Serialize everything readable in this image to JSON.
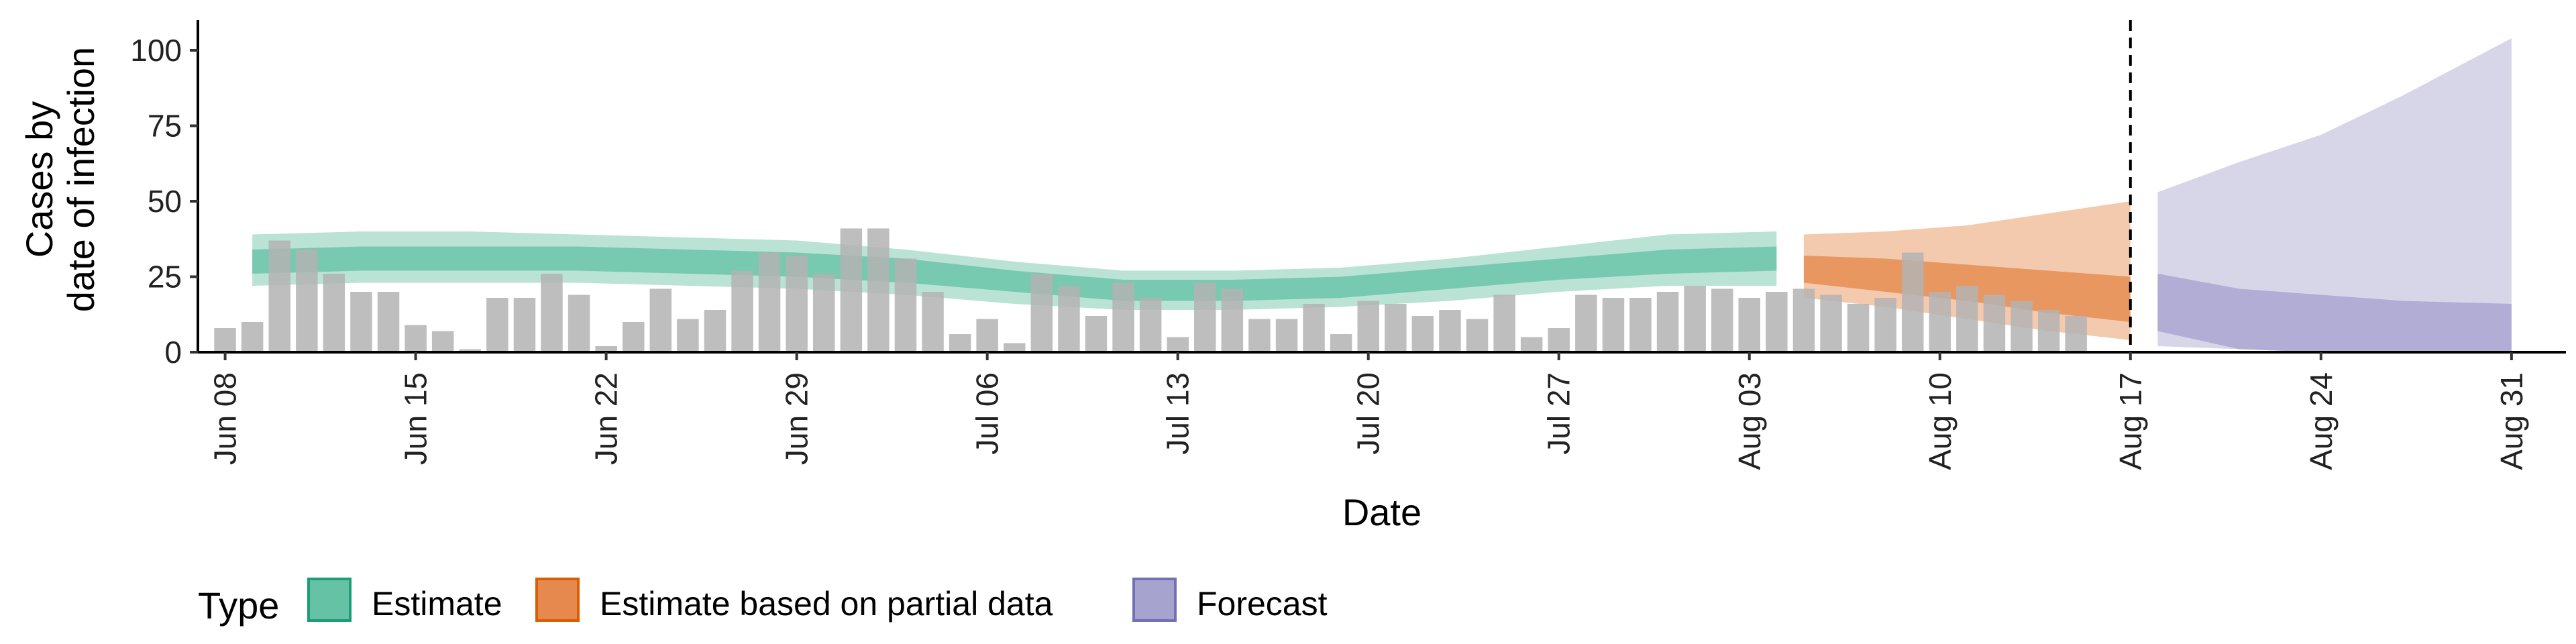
{
  "chart_data": {
    "type": "bar",
    "title": "",
    "xlabel": "Date",
    "ylabel_lines": [
      "Cases by",
      "date of infection"
    ],
    "ylim": [
      0,
      110
    ],
    "yticks": [
      0,
      25,
      50,
      75,
      100
    ],
    "x_range": [
      "2021-06-07",
      "2021-09-02"
    ],
    "xticks": [
      {
        "date": "2021-06-08",
        "label": "Jun 08"
      },
      {
        "date": "2021-06-15",
        "label": "Jun 15"
      },
      {
        "date": "2021-06-22",
        "label": "Jun 22"
      },
      {
        "date": "2021-06-29",
        "label": "Jun 29"
      },
      {
        "date": "2021-07-06",
        "label": "Jul 06"
      },
      {
        "date": "2021-07-13",
        "label": "Jul 13"
      },
      {
        "date": "2021-07-20",
        "label": "Jul 20"
      },
      {
        "date": "2021-07-27",
        "label": "Jul 27"
      },
      {
        "date": "2021-08-03",
        "label": "Aug 03"
      },
      {
        "date": "2021-08-10",
        "label": "Aug 10"
      },
      {
        "date": "2021-08-17",
        "label": "Aug 17"
      },
      {
        "date": "2021-08-24",
        "label": "Aug 24"
      },
      {
        "date": "2021-08-31",
        "label": "Aug 31"
      }
    ],
    "vline_date": "2021-08-17",
    "bars": {
      "start_date": "2021-06-08",
      "color": "#b3b3b3",
      "values": [
        8,
        10,
        37,
        34,
        26,
        20,
        20,
        9,
        7,
        1,
        18,
        18,
        26,
        19,
        2,
        10,
        21,
        11,
        14,
        27,
        33,
        32,
        26,
        41,
        41,
        31,
        20,
        6,
        11,
        3,
        26,
        22,
        12,
        23,
        18,
        5,
        23,
        21,
        11,
        11,
        16,
        6,
        17,
        16,
        12,
        14,
        11,
        19,
        5,
        8,
        19,
        18,
        18,
        20,
        22,
        21,
        18,
        20,
        21,
        19,
        16,
        18,
        33,
        20,
        22,
        19,
        17,
        14,
        12
      ]
    },
    "legend_title": "Type",
    "series": [
      {
        "name": "Estimate",
        "color": "#1b9e77",
        "fill": "#66c2a5",
        "dates": [
          "2021-06-09",
          "2021-06-13",
          "2021-06-17",
          "2021-06-21",
          "2021-06-25",
          "2021-06-29",
          "2021-07-03",
          "2021-07-07",
          "2021-07-11",
          "2021-07-15",
          "2021-07-19",
          "2021-07-23",
          "2021-07-27",
          "2021-07-31",
          "2021-08-04"
        ],
        "median": [
          30,
          31,
          31,
          31,
          30,
          29,
          27,
          23,
          20,
          20,
          21,
          24,
          27,
          30,
          31
        ],
        "outer_lower": [
          22,
          23,
          23,
          23,
          22,
          21,
          19,
          16,
          14,
          14,
          15,
          17,
          20,
          22,
          22
        ],
        "outer_upper": [
          39,
          40,
          40,
          39,
          38,
          37,
          34,
          30,
          27,
          27,
          28,
          31,
          35,
          39,
          40
        ],
        "inner_lower": [
          26,
          27,
          27,
          27,
          26,
          25,
          23,
          20,
          17,
          17,
          18,
          21,
          24,
          26,
          27
        ],
        "inner_upper": [
          34,
          35,
          35,
          35,
          34,
          33,
          31,
          27,
          24,
          24,
          25,
          28,
          31,
          34,
          35
        ]
      },
      {
        "name": "Estimate based on partial data",
        "color": "#d95f02",
        "fill": "#e6894e",
        "dates": [
          "2021-08-05",
          "2021-08-08",
          "2021-08-11",
          "2021-08-14",
          "2021-08-17"
        ],
        "median": [
          27,
          25,
          22,
          19,
          17
        ],
        "outer_lower": [
          18,
          15,
          11,
          7,
          4
        ],
        "outer_upper": [
          39,
          40,
          42,
          46,
          50
        ],
        "inner_lower": [
          23,
          20,
          17,
          13,
          10
        ],
        "inner_upper": [
          32,
          31,
          29,
          27,
          25
        ]
      },
      {
        "name": "Forecast",
        "color": "#7570b3",
        "fill": "#a7a3cf",
        "dates": [
          "2021-08-18",
          "2021-08-21",
          "2021-08-24",
          "2021-08-27",
          "2021-08-31"
        ],
        "median": [
          15,
          10,
          9,
          8,
          8
        ],
        "outer_lower": [
          2,
          1,
          0,
          0,
          0
        ],
        "outer_upper": [
          53,
          63,
          72,
          85,
          104
        ],
        "inner_lower": [
          7,
          1,
          0,
          0,
          0
        ],
        "inner_upper": [
          26,
          21,
          19,
          17,
          16
        ]
      }
    ]
  }
}
